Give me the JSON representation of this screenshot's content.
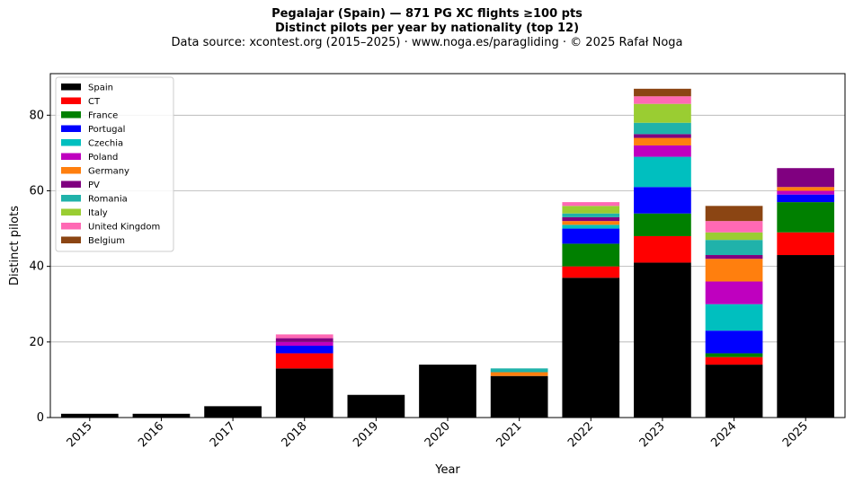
{
  "title": "Pegalajar (Spain)  —  871 PG XC flights ≥100 pts",
  "subtitle": "Distinct pilots per year by nationality (top 12)",
  "source": "Data source: xcontest.org (2015–2025)  ·  www.noga.es/paragliding  ·  © 2025 Rafał Noga",
  "chart_data": {
    "type": "bar",
    "stacked": true,
    "xlabel": "Year",
    "ylabel": "Distinct pilots",
    "ylim": [
      0,
      91
    ],
    "yticks": [
      0,
      20,
      40,
      60,
      80
    ],
    "grid": "y",
    "legend_position": "top-left",
    "categories": [
      "2015",
      "2016",
      "2017",
      "2018",
      "2019",
      "2020",
      "2021",
      "2022",
      "2023",
      "2024",
      "2025"
    ],
    "series": [
      {
        "name": "Spain",
        "color": "#000000",
        "values": [
          1,
          1,
          3,
          13,
          6,
          14,
          11,
          37,
          41,
          14,
          43
        ]
      },
      {
        "name": "CT",
        "color": "#ff0000",
        "values": [
          0,
          0,
          0,
          4,
          0,
          0,
          0,
          3,
          7,
          2,
          6
        ]
      },
      {
        "name": "France",
        "color": "#008000",
        "values": [
          0,
          0,
          0,
          0,
          0,
          0,
          0,
          6,
          6,
          1,
          8
        ]
      },
      {
        "name": "Portugal",
        "color": "#0000ff",
        "values": [
          0,
          0,
          0,
          2,
          0,
          0,
          0,
          4,
          7,
          6,
          2
        ]
      },
      {
        "name": "Czechia",
        "color": "#00bfbf",
        "values": [
          0,
          0,
          0,
          0,
          0,
          0,
          0,
          1,
          8,
          7,
          0
        ]
      },
      {
        "name": "Poland",
        "color": "#bf00bf",
        "values": [
          0,
          0,
          0,
          1,
          0,
          0,
          0,
          0,
          3,
          6,
          1
        ]
      },
      {
        "name": "Germany",
        "color": "#ff7f0e",
        "values": [
          0,
          0,
          0,
          0,
          0,
          0,
          1,
          1,
          2,
          6,
          1
        ]
      },
      {
        "name": "PV",
        "color": "#800080",
        "values": [
          0,
          0,
          0,
          1,
          0,
          0,
          0,
          1,
          1,
          1,
          5
        ]
      },
      {
        "name": "Romania",
        "color": "#20b2aa",
        "values": [
          0,
          0,
          0,
          0,
          0,
          0,
          1,
          1,
          3,
          4,
          0
        ]
      },
      {
        "name": "Italy",
        "color": "#9acd32",
        "values": [
          0,
          0,
          0,
          0,
          0,
          0,
          0,
          2,
          5,
          2,
          0
        ]
      },
      {
        "name": "United Kingdom",
        "color": "#ff69b4",
        "values": [
          0,
          0,
          0,
          1,
          0,
          0,
          0,
          1,
          2,
          3,
          0
        ]
      },
      {
        "name": "Belgium",
        "color": "#8b4513",
        "values": [
          0,
          0,
          0,
          0,
          0,
          0,
          0,
          0,
          2,
          4,
          0
        ]
      }
    ]
  }
}
